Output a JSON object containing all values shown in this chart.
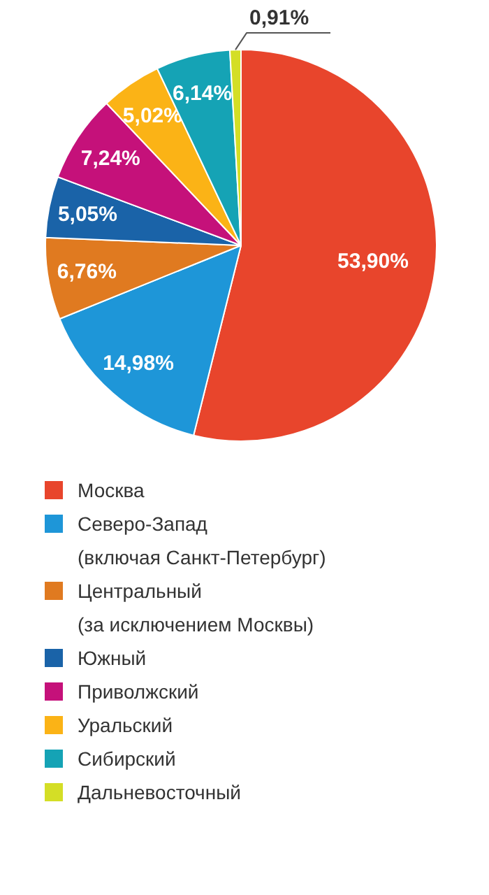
{
  "chart_data": {
    "type": "pie",
    "legend": "bottom",
    "data_labels": true,
    "categories": [
      "Москва",
      "Северо-Запад\n(включая Санкт-Петербург)",
      "Центральный\n(за исключением Москвы)",
      "Южный",
      "Приволжский",
      "Уральский",
      "Сибирский",
      "Дальневосточный"
    ],
    "values": [
      53.9,
      14.98,
      6.76,
      5.05,
      7.24,
      5.02,
      6.14,
      0.91
    ],
    "value_labels": [
      "53,90%",
      "14,98%",
      "6,76%",
      "5,05%",
      "7,24%",
      "5,02%",
      "6,14%",
      "0,91%"
    ],
    "colors": [
      "#e8452c",
      "#1e96d8",
      "#e07a20",
      "#1a63a8",
      "#c5117a",
      "#fbb316",
      "#15a3b5",
      "#d4de26"
    ]
  }
}
